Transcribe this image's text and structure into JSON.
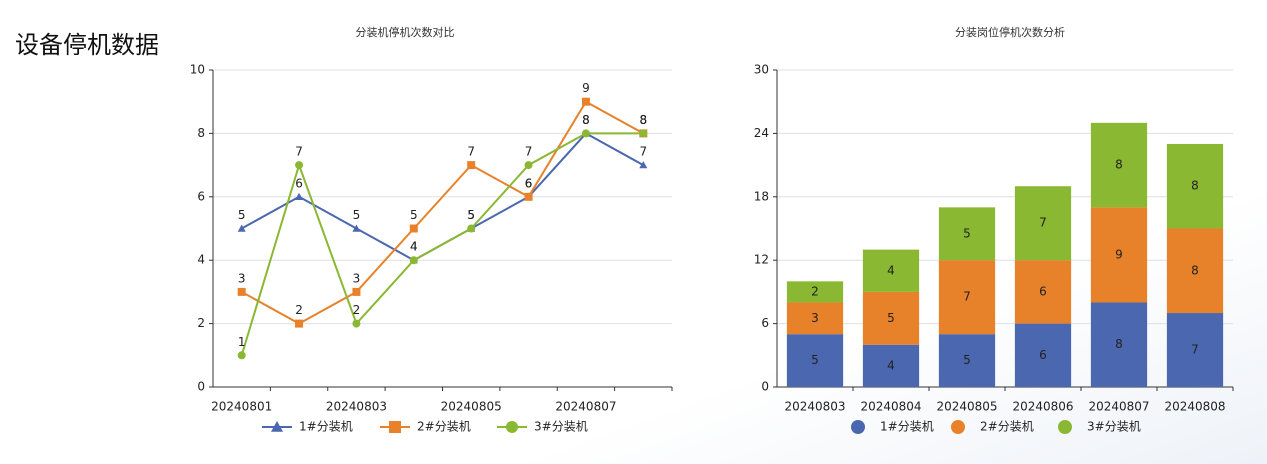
{
  "header": {
    "title": "设备停机数据"
  },
  "chart_data": [
    {
      "type": "line",
      "title": "分装机停机次数对比",
      "categories": [
        "20240801",
        null,
        "20240803",
        null,
        "20240805",
        null,
        "20240807",
        null
      ],
      "series": [
        {
          "name": "1#分装机",
          "color": "#4a67b0",
          "marker": "triangle",
          "values": [
            5,
            6,
            5,
            4,
            5,
            6,
            8,
            7
          ]
        },
        {
          "name": "2#分装机",
          "color": "#e8822a",
          "marker": "square",
          "values": [
            3,
            2,
            3,
            5,
            7,
            6,
            9,
            8
          ]
        },
        {
          "name": "3#分装机",
          "color": "#8bb832",
          "marker": "circle",
          "values": [
            1,
            7,
            2,
            4,
            5,
            7,
            8,
            8
          ]
        }
      ],
      "ylim": [
        0,
        10
      ],
      "yticks": [
        0,
        2,
        4,
        6,
        8,
        10
      ],
      "grid": true
    },
    {
      "type": "stacked-bar",
      "title": "分装岗位停机次数分析",
      "categories": [
        "20240803",
        "20240804",
        "20240805",
        "20240806",
        "20240807",
        "20240808"
      ],
      "series": [
        {
          "name": "1#分装机",
          "color": "#4a67b0",
          "marker": "circle",
          "values": [
            5,
            4,
            5,
            6,
            8,
            7
          ]
        },
        {
          "name": "2#分装机",
          "color": "#e8822a",
          "marker": "circle",
          "values": [
            3,
            5,
            7,
            6,
            9,
            8
          ]
        },
        {
          "name": "3#分装机",
          "color": "#8bb832",
          "marker": "circle",
          "values": [
            2,
            4,
            5,
            7,
            8,
            8
          ]
        }
      ],
      "ylim": [
        0,
        30
      ],
      "yticks": [
        0,
        6,
        12,
        18,
        24,
        30
      ],
      "grid": true
    }
  ]
}
